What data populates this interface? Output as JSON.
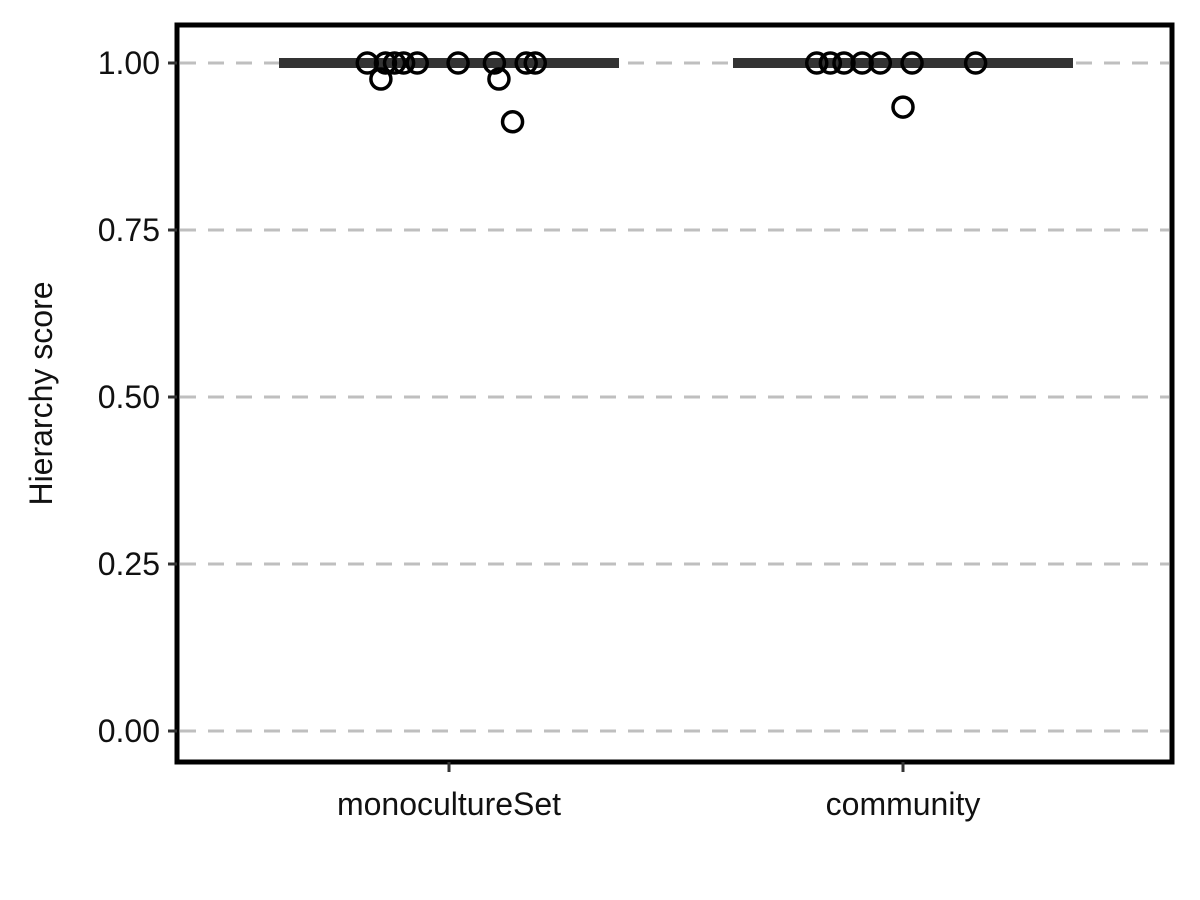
{
  "chart_data": {
    "type": "box",
    "title": "",
    "xlabel": "",
    "ylabel": "Hierarchy score",
    "ylim": [
      -0.045,
      1.06
    ],
    "y_ticks": [
      0.0,
      0.25,
      0.5,
      0.75,
      1.0
    ],
    "y_tick_labels": [
      "0.00",
      "0.25",
      "0.50",
      "0.75",
      "1.00"
    ],
    "grid": "horizontal dashed",
    "categories": [
      "monocultureSet",
      "community"
    ],
    "boxes": [
      {
        "category": "monocultureSet",
        "median": 1.0,
        "q1": 1.0,
        "q3": 1.0,
        "whisker_low": 1.0,
        "whisker_high": 1.0,
        "outliers": [
          {
            "offset": -0.18,
            "y": 1.0
          },
          {
            "offset": -0.14,
            "y": 1.0
          },
          {
            "offset": -0.12,
            "y": 1.0
          },
          {
            "offset": -0.1,
            "y": 1.0
          },
          {
            "offset": -0.07,
            "y": 1.0
          },
          {
            "offset": 0.02,
            "y": 1.0
          },
          {
            "offset": 0.1,
            "y": 1.0
          },
          {
            "offset": 0.17,
            "y": 1.0
          },
          {
            "offset": 0.19,
            "y": 1.0
          },
          {
            "offset": -0.15,
            "y": 0.976
          },
          {
            "offset": 0.11,
            "y": 0.976
          },
          {
            "offset": 0.14,
            "y": 0.912
          }
        ]
      },
      {
        "category": "community",
        "median": 1.0,
        "q1": 1.0,
        "q3": 1.0,
        "whisker_low": 1.0,
        "whisker_high": 1.0,
        "outliers": [
          {
            "offset": -0.19,
            "y": 1.0
          },
          {
            "offset": -0.16,
            "y": 1.0
          },
          {
            "offset": -0.13,
            "y": 1.0
          },
          {
            "offset": -0.09,
            "y": 1.0
          },
          {
            "offset": -0.05,
            "y": 1.0
          },
          {
            "offset": 0.02,
            "y": 1.0
          },
          {
            "offset": 0.16,
            "y": 1.0
          },
          {
            "offset": 0.0,
            "y": 0.934
          }
        ]
      }
    ],
    "colors": {
      "box_line": "#333333",
      "outlier_stroke": "#000000",
      "grid": "#bfbfbf",
      "panel_border": "#000000"
    }
  }
}
